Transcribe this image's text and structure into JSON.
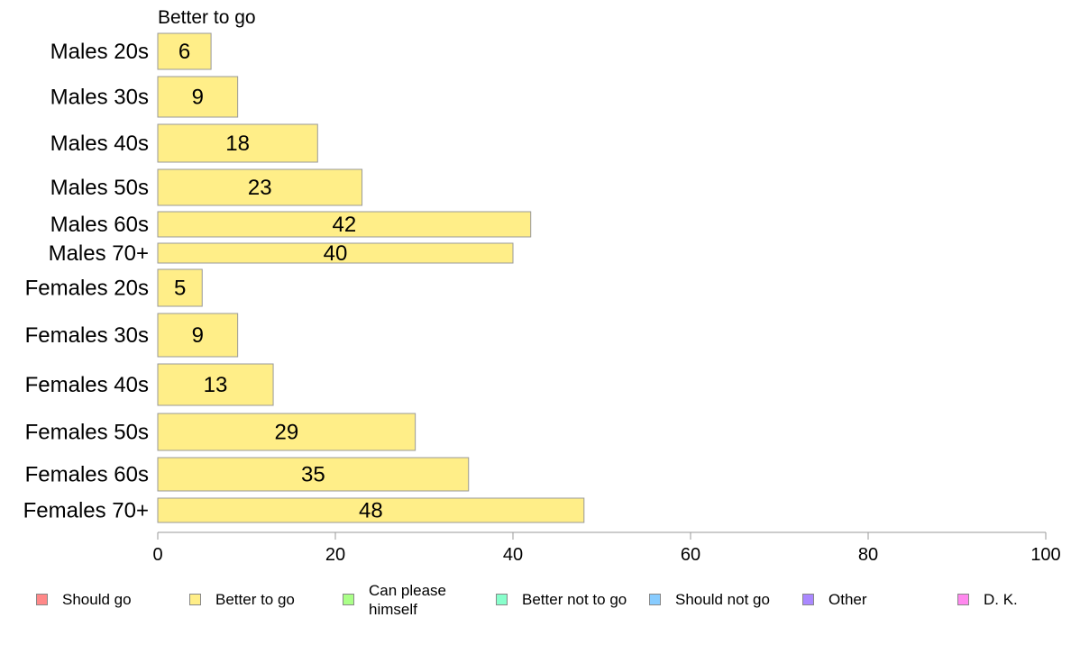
{
  "chart_data": {
    "type": "bar",
    "orientation": "horizontal",
    "title": "Better to go",
    "categories": [
      "Males 20s",
      "Males 30s",
      "Males 40s",
      "Males 50s",
      "Males 60s",
      "Males 70+",
      "Females 20s",
      "Females 30s",
      "Females 40s",
      "Females 50s",
      "Females 60s",
      "Females 70+"
    ],
    "values": [
      6,
      9,
      18,
      23,
      42,
      40,
      5,
      9,
      13,
      29,
      35,
      48
    ],
    "xlim": [
      0,
      100
    ],
    "xticks": [
      0,
      20,
      40,
      60,
      80,
      100
    ],
    "grid": false,
    "bar_color": "#ffee88",
    "bar_border_color": "#999999",
    "legend_position": "bottom",
    "legend": [
      {
        "label": "Should go",
        "color": "#ff8888"
      },
      {
        "label": "Better to go",
        "color": "#ffee88"
      },
      {
        "label": "Can please himself",
        "color": "#aaff88"
      },
      {
        "label": "Better not to go",
        "color": "#88ffcc"
      },
      {
        "label": "Should not go",
        "color": "#88ccff"
      },
      {
        "label": "Other",
        "color": "#aa88ff"
      },
      {
        "label": "D. K.",
        "color": "#ff88ee"
      }
    ]
  }
}
